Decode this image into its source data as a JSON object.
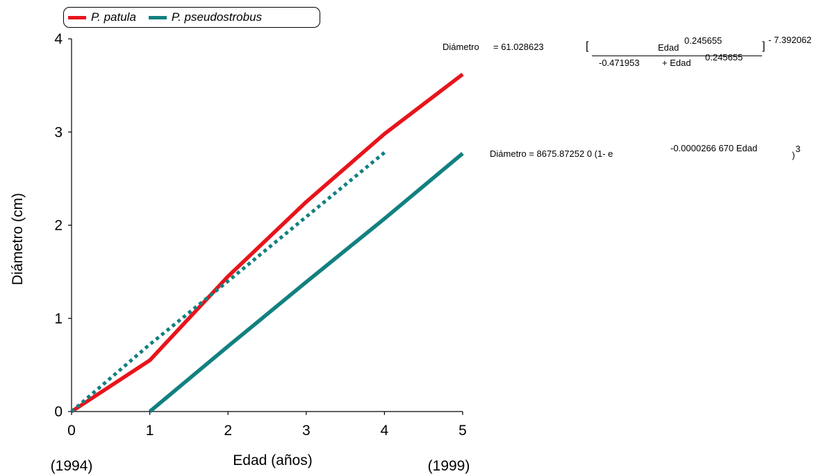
{
  "chart_data": {
    "type": "line",
    "xlabel": "Edad  (años)",
    "ylabel": "Diámetro  (cm)",
    "xlim": [
      0,
      5
    ],
    "ylim": [
      0,
      4
    ],
    "x_ticks": [
      "0",
      "1",
      "2",
      "3",
      "4",
      "5"
    ],
    "y_ticks": [
      "0",
      "1",
      "2",
      "3",
      "4"
    ],
    "x_sublabels": {
      "left": "(1994)",
      "right": "(1999)"
    },
    "grid": false,
    "legend_position": "top-left",
    "series": [
      {
        "name": "P. patula",
        "color": "#e8141b",
        "style": "solid",
        "x": [
          0,
          1,
          2,
          3,
          4,
          5
        ],
        "y": [
          0,
          0.55,
          1.45,
          2.25,
          2.98,
          3.62
        ]
      },
      {
        "name": "P. pseudostrobus",
        "color": "#128080",
        "style": "solid",
        "x": [
          1,
          2,
          3,
          4,
          5
        ],
        "y": [
          0,
          0.7,
          1.39,
          2.07,
          2.77
        ]
      },
      {
        "color": "#128080",
        "style": "dotted",
        "x": [
          0,
          1,
          2,
          3,
          4
        ],
        "y": [
          0,
          0.72,
          1.4,
          2.09,
          2.78
        ]
      }
    ]
  },
  "equations": {
    "eq1": {
      "lhs": "Diámetro",
      "eq_coef": "= 61.028623",
      "bracket_open": "[",
      "num_var": "Edad",
      "num_exp": "0.245655",
      "den_const": "-0.471953",
      "den_var": "+ Edad",
      "den_exp": "0.245655",
      "bracket_close": "]",
      "outer_exp": "- 7.392062"
    },
    "eq2": {
      "text": "Diámetro = 8675.87252 0  (1- e",
      "exp": "-0.0000266  670 Edad",
      "close": ")",
      "power": "3"
    }
  }
}
